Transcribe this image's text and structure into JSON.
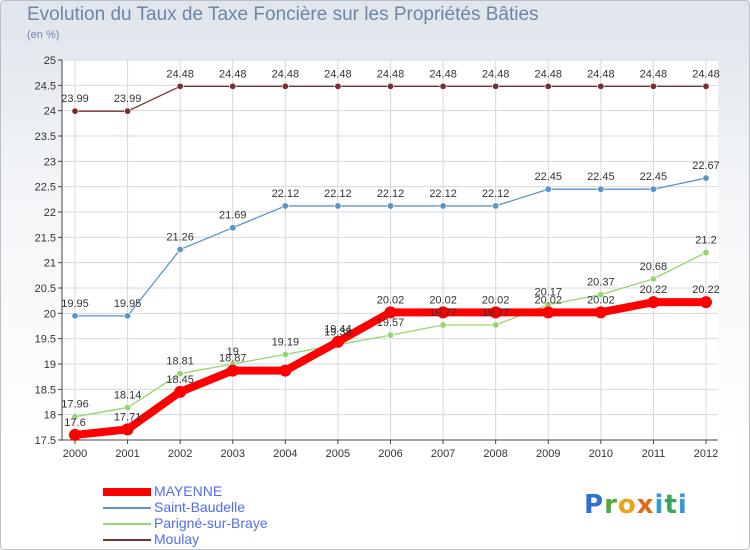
{
  "title": "Evolution du Taux de Taxe Foncière sur les Propriétés Bâties",
  "subtitle": "(en %)",
  "logo_text": "Proxiti",
  "chart_data": {
    "type": "line",
    "title": "Evolution du Taux de Taxe Foncière sur les Propriétés Bâties",
    "ylabel": "(en %)",
    "xlabel": "",
    "ylim": [
      17.5,
      25
    ],
    "yticks": [
      "17.5",
      "18",
      "18.5",
      "19",
      "19.5",
      "20",
      "20.5",
      "21",
      "21.5",
      "22",
      "22.5",
      "23",
      "23.5",
      "24",
      "24.5",
      "25"
    ],
    "x": [
      "2000",
      "2001",
      "2002",
      "2003",
      "2004",
      "2005",
      "2006",
      "2007",
      "2008",
      "2009",
      "2010",
      "2011",
      "2012"
    ],
    "grid": true,
    "legend_position": "bottom-left",
    "series": [
      {
        "name": "Moulay",
        "color": "#7a2e2e",
        "values": [
          23.99,
          23.99,
          24.48,
          24.48,
          24.48,
          24.48,
          24.48,
          24.48,
          24.48,
          24.48,
          24.48,
          24.48,
          24.48
        ],
        "labels": [
          "23.99",
          "23.99",
          "24.48",
          "24.48",
          "24.48",
          "24.48",
          "24.48",
          "24.48",
          "24.48",
          "24.48",
          "24.48",
          "24.48",
          "24.48"
        ]
      },
      {
        "name": "Saint-Baudelle",
        "color": "#5b95c7",
        "values": [
          19.95,
          19.95,
          21.26,
          21.69,
          22.12,
          22.12,
          22.12,
          22.12,
          22.12,
          22.45,
          22.45,
          22.45,
          22.67
        ],
        "labels": [
          "19.95",
          "19.95",
          "21.26",
          "21.69",
          "22.12",
          "22.12",
          "22.12",
          "22.12",
          "22.12",
          "22.45",
          "22.45",
          "22.45",
          "22.67"
        ]
      },
      {
        "name": "Parigné-sur-Braye",
        "color": "#93d66a",
        "values": [
          17.96,
          18.14,
          18.81,
          19.0,
          19.19,
          19.38,
          19.57,
          19.77,
          19.77,
          20.17,
          20.37,
          20.68,
          21.2
        ],
        "labels": [
          "17.96",
          "18.14",
          "18.81",
          "19",
          "19.19",
          "19.38",
          "19.57",
          "19.77",
          "19.77",
          "20.17",
          "20.37",
          "20.68",
          "21.2"
        ]
      },
      {
        "name": "MAYENNE",
        "color": "#ff0000",
        "values": [
          17.6,
          17.71,
          18.45,
          18.87,
          18.87,
          19.44,
          20.02,
          20.02,
          20.02,
          20.02,
          20.02,
          20.22,
          20.22
        ],
        "labels": [
          "17.6",
          "17.71",
          "18.45",
          "18.87",
          "",
          "19.44",
          "20.02",
          "20.02",
          "20.02",
          "20.02",
          "20.02",
          "20.22",
          "20.22"
        ]
      }
    ]
  }
}
